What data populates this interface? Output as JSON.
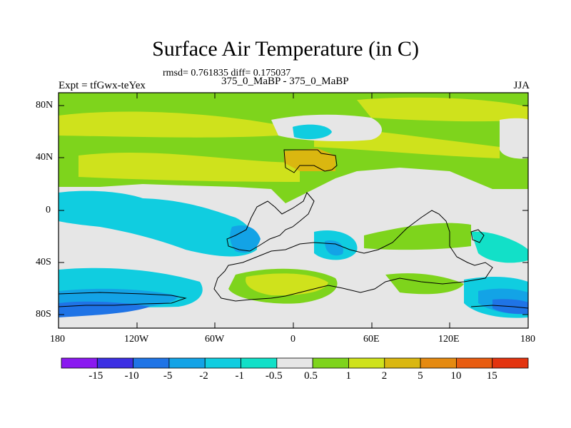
{
  "header": {
    "title": "Surface Air Temperature (in C)",
    "stats": "rmsd= 0.761835 diff= 0.175037",
    "experiment": "Expt = tfGwx-teYex",
    "comparison": "375_0_MaBP - 375_0_MaBP",
    "season": "JJA"
  },
  "axes": {
    "lat_ticks": [
      "80N",
      "40N",
      "0",
      "40S",
      "80S"
    ],
    "lon_ticks": [
      "180",
      "120W",
      "60W",
      "0",
      "60E",
      "120E",
      "180"
    ]
  },
  "colorbar": {
    "labels": [
      "-15",
      "-10",
      "-5",
      "-2",
      "-1",
      "-0.5",
      "0.5",
      "1",
      "2",
      "5",
      "10",
      "15"
    ],
    "colors": [
      "#8a19f0",
      "#3c2fe3",
      "#1f74e6",
      "#13a3e6",
      "#10cde0",
      "#12e0c8",
      "#e6e6e6",
      "#7ed41c",
      "#cfe21c",
      "#dab710",
      "#e58a10",
      "#e85c10",
      "#e3340f"
    ]
  },
  "map_colors": {
    "neutral": "#e6e6e6",
    "green": "#7ed41c",
    "yellow": "#cfe21c",
    "orange": "#dab710",
    "cyan": "#10cde0",
    "lightcyan": "#12e0c8",
    "skyblue": "#13a3e6",
    "blue": "#1f74e6"
  }
}
